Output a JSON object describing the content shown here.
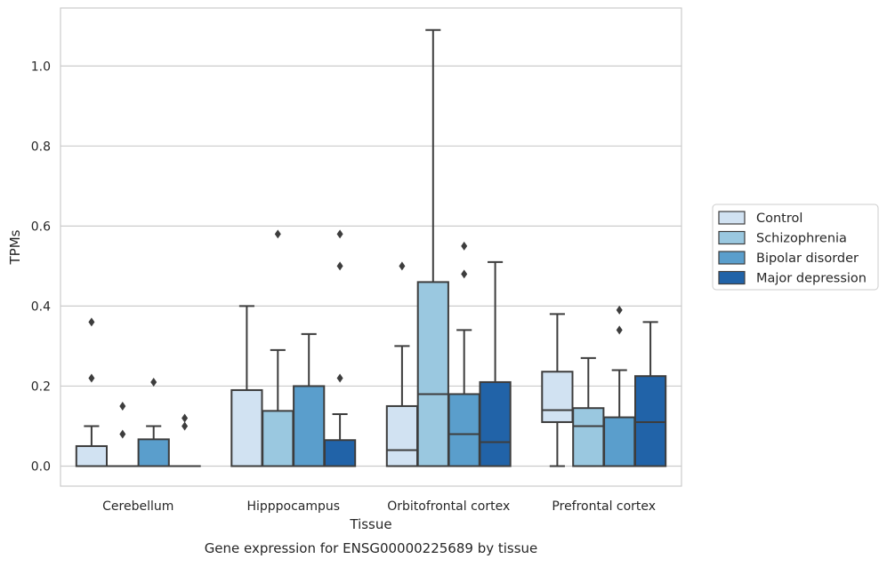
{
  "chart_data": {
    "type": "box",
    "caption": "Gene expression for ENSG00000225689 by tissue",
    "xlabel": "Tissue",
    "ylabel": "TPMs",
    "ylim": [
      -0.05,
      1.145
    ],
    "yticks": [
      0.0,
      0.2,
      0.4,
      0.6,
      0.8,
      1.0
    ],
    "ytick_labels": [
      "0.0",
      "0.2",
      "0.4",
      "0.6",
      "0.8",
      "1.0"
    ],
    "grid": "horizontal",
    "legend_position": "right",
    "categories": [
      "Cerebellum",
      "Hipppocampus",
      "Orbitofrontal cortex",
      "Prefrontal cortex"
    ],
    "series": [
      {
        "name": "Control",
        "color": "#d1e2f2",
        "boxes": [
          {
            "whislo": 0,
            "q1": 0,
            "med": 0,
            "q3": 0.05,
            "whishi": 0.1,
            "fliers": [
              0.22,
              0.36
            ]
          },
          {
            "whislo": 0,
            "q1": 0,
            "med": 0,
            "q3": 0.19,
            "whishi": 0.4,
            "fliers": []
          },
          {
            "whislo": 0,
            "q1": 0,
            "med": 0.04,
            "q3": 0.15,
            "whishi": 0.3,
            "fliers": [
              0.5
            ]
          },
          {
            "whislo": 0,
            "q1": 0.11,
            "med": 0.14,
            "q3": 0.236,
            "whishi": 0.38,
            "fliers": []
          }
        ]
      },
      {
        "name": "Schizophrenia",
        "color": "#9ac8e0",
        "boxes": [
          {
            "whislo": 0,
            "q1": 0,
            "med": 0,
            "q3": 0,
            "whishi": 0,
            "fliers": [
              0.08,
              0.15
            ]
          },
          {
            "whislo": 0,
            "q1": 0,
            "med": 0,
            "q3": 0.138,
            "whishi": 0.29,
            "fliers": [
              0.58
            ]
          },
          {
            "whislo": 0,
            "q1": 0,
            "med": 0.18,
            "q3": 0.46,
            "whishi": 1.09,
            "fliers": []
          },
          {
            "whislo": 0,
            "q1": 0,
            "med": 0.1,
            "q3": 0.145,
            "whishi": 0.27,
            "fliers": []
          }
        ]
      },
      {
        "name": "Bipolar disorder",
        "color": "#5a9ecc",
        "boxes": [
          {
            "whislo": 0,
            "q1": 0,
            "med": 0,
            "q3": 0.067,
            "whishi": 0.1,
            "fliers": [
              0.21
            ]
          },
          {
            "whislo": 0,
            "q1": 0,
            "med": 0,
            "q3": 0.2,
            "whishi": 0.33,
            "fliers": []
          },
          {
            "whislo": 0,
            "q1": 0,
            "med": 0.08,
            "q3": 0.18,
            "whishi": 0.34,
            "fliers": [
              0.48,
              0.55
            ]
          },
          {
            "whislo": 0,
            "q1": 0,
            "med": 0,
            "q3": 0.122,
            "whishi": 0.24,
            "fliers": [
              0.34,
              0.39
            ]
          }
        ]
      },
      {
        "name": "Major depression",
        "color": "#2163a8",
        "boxes": [
          {
            "whislo": 0,
            "q1": 0,
            "med": 0,
            "q3": 0,
            "whishi": 0,
            "fliers": [
              0.1,
              0.12
            ]
          },
          {
            "whislo": 0,
            "q1": 0,
            "med": 0,
            "q3": 0.065,
            "whishi": 0.13,
            "fliers": [
              0.22,
              0.5,
              0.58
            ]
          },
          {
            "whislo": 0,
            "q1": 0,
            "med": 0.06,
            "q3": 0.21,
            "whishi": 0.51,
            "fliers": []
          },
          {
            "whislo": 0,
            "q1": 0,
            "med": 0.11,
            "q3": 0.225,
            "whishi": 0.36,
            "fliers": []
          }
        ]
      }
    ]
  }
}
